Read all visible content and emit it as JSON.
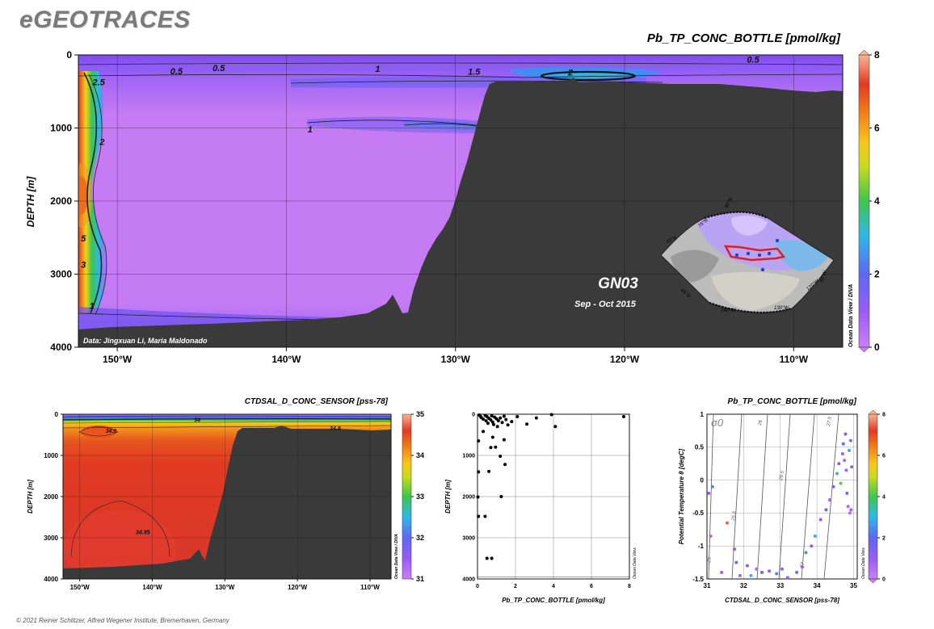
{
  "brand": "eGEOTRACES",
  "footer": "© 2021 Reiner Schlitzer, Alfred Wegener Institute, Bremerhaven, Germany",
  "watermark": "Ocean Data View / DIVA",
  "watermark_short": "Ocean Data View",
  "colors": {
    "seafloor": "#3a3a3a",
    "violet": "#c57bf3",
    "purple": "#8a5cf5",
    "blue": "#5a63f0",
    "cyan": "#2fb6e8",
    "green": "#3dc450",
    "yellow": "#f6d11a",
    "orange": "#f49a1b",
    "red": "#e03a22",
    "peach": "#f7b592"
  },
  "chart_data": [
    {
      "type": "heatmap",
      "title": "Pb_TP_CONC_BOTTLE [pmol/kg]",
      "ylabel": "DEPTH [m]",
      "xlabel": "",
      "xlim": [
        -152.3,
        -107.1
      ],
      "ylim": [
        4000,
        0
      ],
      "x_ticks": [
        {
          "value": -150,
          "label": "150°W"
        },
        {
          "value": -140,
          "label": "140°W"
        },
        {
          "value": -130,
          "label": "130°W"
        },
        {
          "value": -120,
          "label": "120°W"
        },
        {
          "value": -110,
          "label": "110°W"
        }
      ],
      "y_ticks": [
        {
          "value": 0,
          "label": "0"
        },
        {
          "value": 1000,
          "label": "1000"
        },
        {
          "value": 2000,
          "label": "2000"
        },
        {
          "value": 3000,
          "label": "3000"
        },
        {
          "value": 4000,
          "label": "4000"
        }
      ],
      "grid": true,
      "colorbar": {
        "min": 0,
        "max": 8,
        "ticks": [
          {
            "value": 0,
            "label": "0"
          },
          {
            "value": 2,
            "label": "2"
          },
          {
            "value": 4,
            "label": "4"
          },
          {
            "value": 6,
            "label": "6"
          },
          {
            "value": 8,
            "label": "8"
          }
        ]
      },
      "contour_labels": [
        {
          "text": "0.5",
          "x": -146.5,
          "y": 230
        },
        {
          "text": "0.5",
          "x": -144.0,
          "y": 190
        },
        {
          "text": "1",
          "x": -134.6,
          "y": 200
        },
        {
          "text": "1.5",
          "x": -128.9,
          "y": 240
        },
        {
          "text": "2",
          "x": -123.2,
          "y": 250
        },
        {
          "text": "0.5",
          "x": -112.4,
          "y": 70
        },
        {
          "text": "1",
          "x": -138.6,
          "y": 1030
        },
        {
          "text": "2.5",
          "x": -151.1,
          "y": 380
        },
        {
          "text": "2",
          "x": -150.9,
          "y": 1200
        },
        {
          "text": "5",
          "x": -152.0,
          "y": 2520
        },
        {
          "text": "3",
          "x": -152.0,
          "y": 2880
        },
        {
          "text": "1",
          "x": -151.5,
          "y": 3440
        }
      ],
      "annotations": [
        {
          "text": "GN03"
        },
        {
          "text": "Sep - Oct 2015"
        },
        {
          "text": "Data: Jingxuan Li, Maria Maldonado"
        }
      ],
      "inset_map": {
        "labels": [
          "80°N",
          "75°N",
          "70°N",
          "65°N",
          "140°W",
          "130°W",
          "120°W",
          "60°W"
        ]
      }
    },
    {
      "type": "heatmap",
      "title": "CTDSAL_D_CONC_SENSOR [pss-78]",
      "ylabel": "DEPTH [m]",
      "xlabel": "",
      "xlim": [
        -152.3,
        -107.1
      ],
      "ylim": [
        4000,
        0
      ],
      "x_ticks": [
        {
          "value": -150,
          "label": "150°W"
        },
        {
          "value": -140,
          "label": "140°W"
        },
        {
          "value": -130,
          "label": "130°W"
        },
        {
          "value": -120,
          "label": "120°W"
        },
        {
          "value": -110,
          "label": "110°W"
        }
      ],
      "y_ticks": [
        {
          "value": 0,
          "label": "0"
        },
        {
          "value": 1000,
          "label": "1000"
        },
        {
          "value": 2000,
          "label": "2000"
        },
        {
          "value": 3000,
          "label": "3000"
        },
        {
          "value": 4000,
          "label": "4000"
        }
      ],
      "grid": true,
      "colorbar": {
        "min": 31,
        "max": 35,
        "ticks": [
          {
            "value": 31,
            "label": "31"
          },
          {
            "value": 32,
            "label": "32"
          },
          {
            "value": 33,
            "label": "33"
          },
          {
            "value": 34,
            "label": "34"
          },
          {
            "value": 35,
            "label": "35"
          }
        ]
      },
      "contour_labels": [
        {
          "text": "34.9",
          "x": -145.7,
          "y": 390
        },
        {
          "text": "34",
          "x": -133.8,
          "y": 130
        },
        {
          "text": "34.9",
          "x": -114.8,
          "y": 330
        },
        {
          "text": "34.95",
          "x": -141.3,
          "y": 2850
        }
      ]
    },
    {
      "type": "scatter",
      "title": "",
      "xlabel": "Pb_TP_CONC_BOTTLE [pmol/kg]",
      "ylabel": "DEPTH [m]",
      "xlim": [
        0,
        8
      ],
      "ylim": [
        4000,
        0
      ],
      "x_ticks": [
        0,
        2,
        4,
        6,
        8
      ],
      "y_ticks": [
        0,
        1000,
        2000,
        3000,
        4000
      ],
      "grid": true,
      "points": [
        [
          0.1,
          20
        ],
        [
          0.15,
          50
        ],
        [
          0.2,
          80
        ],
        [
          0.3,
          120
        ],
        [
          0.4,
          30
        ],
        [
          0.45,
          160
        ],
        [
          0.5,
          60
        ],
        [
          0.55,
          220
        ],
        [
          0.6,
          100
        ],
        [
          0.7,
          140
        ],
        [
          0.75,
          40
        ],
        [
          0.8,
          190
        ],
        [
          0.85,
          250
        ],
        [
          0.9,
          70
        ],
        [
          1.0,
          110
        ],
        [
          1.05,
          300
        ],
        [
          1.1,
          160
        ],
        [
          1.2,
          90
        ],
        [
          1.3,
          200
        ],
        [
          1.4,
          50
        ],
        [
          1.5,
          130
        ],
        [
          1.6,
          260
        ],
        [
          1.8,
          180
        ],
        [
          2.1,
          60
        ],
        [
          2.6,
          240
        ],
        [
          3.1,
          90
        ],
        [
          3.9,
          10
        ],
        [
          4.1,
          300
        ],
        [
          7.7,
          60
        ],
        [
          0.3,
          420
        ],
        [
          0.8,
          560
        ],
        [
          0.05,
          650
        ],
        [
          1.4,
          620
        ],
        [
          0.7,
          810
        ],
        [
          0.95,
          800
        ],
        [
          1.2,
          1020
        ],
        [
          1.45,
          1220
        ],
        [
          0.05,
          1400
        ],
        [
          0.6,
          1390
        ],
        [
          1.25,
          2000
        ],
        [
          0.02,
          2010
        ],
        [
          0.05,
          2480
        ],
        [
          0.4,
          2480
        ],
        [
          0.5,
          3500
        ],
        [
          0.75,
          3500
        ]
      ]
    },
    {
      "type": "scatter",
      "title": "Pb_TP_CONC_BOTTLE [pmol/kg]",
      "xlabel": "CTDSAL_D_CONC_SENSOR [pss-78]",
      "ylabel": "Potential Temperature θ [degC]",
      "xlim": [
        31,
        35.1
      ],
      "ylim": [
        -1.5,
        1
      ],
      "x_ticks": [
        31,
        32,
        33,
        34,
        35
      ],
      "y_ticks": [
        {
          "value": 1,
          "label": "1"
        },
        {
          "value": 0.5,
          "label": "0.5"
        },
        {
          "value": 0,
          "label": "0"
        },
        {
          "value": -0.5,
          "label": "-0.5"
        },
        {
          "value": -1,
          "label": "-1"
        },
        {
          "value": -1.5,
          "label": "-1.5"
        }
      ],
      "grid": true,
      "colorbar": {
        "min": 0,
        "max": 8,
        "ticks": [
          {
            "value": 0,
            "label": "0"
          },
          {
            "value": 2,
            "label": "2"
          },
          {
            "value": 4,
            "label": "4"
          },
          {
            "value": 6,
            "label": "6"
          },
          {
            "value": 8,
            "label": "8"
          }
        ]
      },
      "sigma_label": "σ0",
      "isopycnal_labels": [
        "25",
        "25.5",
        "26",
        "26.5",
        "27",
        "27.5"
      ],
      "points": [
        {
          "x": 31.05,
          "y": -0.2,
          "c": 1.0
        },
        {
          "x": 31.15,
          "y": -0.1,
          "c": 2.5
        },
        {
          "x": 31.1,
          "y": -0.85,
          "c": 0.6
        },
        {
          "x": 31.4,
          "y": -1.4,
          "c": 0.9
        },
        {
          "x": 31.55,
          "y": -0.65,
          "c": 7.5
        },
        {
          "x": 31.75,
          "y": -1.05,
          "c": 1.2
        },
        {
          "x": 31.8,
          "y": -1.25,
          "c": 2.2
        },
        {
          "x": 31.9,
          "y": -1.45,
          "c": 0.8
        },
        {
          "x": 32.1,
          "y": -1.3,
          "c": 1.5
        },
        {
          "x": 32.2,
          "y": -1.45,
          "c": 3.0
        },
        {
          "x": 32.35,
          "y": -1.35,
          "c": 0.7
        },
        {
          "x": 32.5,
          "y": -1.4,
          "c": 1.8
        },
        {
          "x": 32.7,
          "y": -1.38,
          "c": 1.0
        },
        {
          "x": 32.9,
          "y": -1.42,
          "c": 2.4
        },
        {
          "x": 33.05,
          "y": -1.35,
          "c": 0.9
        },
        {
          "x": 33.2,
          "y": -1.48,
          "c": 1.3
        },
        {
          "x": 33.45,
          "y": -1.4,
          "c": 2.1
        },
        {
          "x": 33.6,
          "y": -1.32,
          "c": 1.1
        },
        {
          "x": 33.7,
          "y": -1.1,
          "c": 2.6
        },
        {
          "x": 33.85,
          "y": -1.0,
          "c": 1.4
        },
        {
          "x": 33.95,
          "y": -0.85,
          "c": 3.2
        },
        {
          "x": 34.1,
          "y": -0.6,
          "c": 1.0
        },
        {
          "x": 34.25,
          "y": -0.45,
          "c": 2.0
        },
        {
          "x": 34.35,
          "y": -0.3,
          "c": 0.8
        },
        {
          "x": 34.45,
          "y": -0.1,
          "c": 1.6
        },
        {
          "x": 34.55,
          "y": 0.1,
          "c": 3.4
        },
        {
          "x": 34.6,
          "y": 0.25,
          "c": 1.2
        },
        {
          "x": 34.65,
          "y": -0.05,
          "c": 4.2
        },
        {
          "x": 34.7,
          "y": 0.4,
          "c": 1.0
        },
        {
          "x": 34.72,
          "y": 0.55,
          "c": 2.2
        },
        {
          "x": 34.75,
          "y": 0.3,
          "c": 0.7
        },
        {
          "x": 34.78,
          "y": 0.7,
          "c": 1.8
        },
        {
          "x": 34.8,
          "y": 0.15,
          "c": 0.9
        },
        {
          "x": 34.82,
          "y": -0.2,
          "c": 1.5
        },
        {
          "x": 34.85,
          "y": -0.4,
          "c": 0.6
        },
        {
          "x": 34.88,
          "y": 0.45,
          "c": 2.8
        },
        {
          "x": 34.9,
          "y": -0.5,
          "c": 0.5
        },
        {
          "x": 34.92,
          "y": 0.6,
          "c": 1.1
        },
        {
          "x": 34.93,
          "y": -0.45,
          "c": 0.8
        },
        {
          "x": 34.95,
          "y": 0.2,
          "c": 1.3
        }
      ]
    }
  ]
}
